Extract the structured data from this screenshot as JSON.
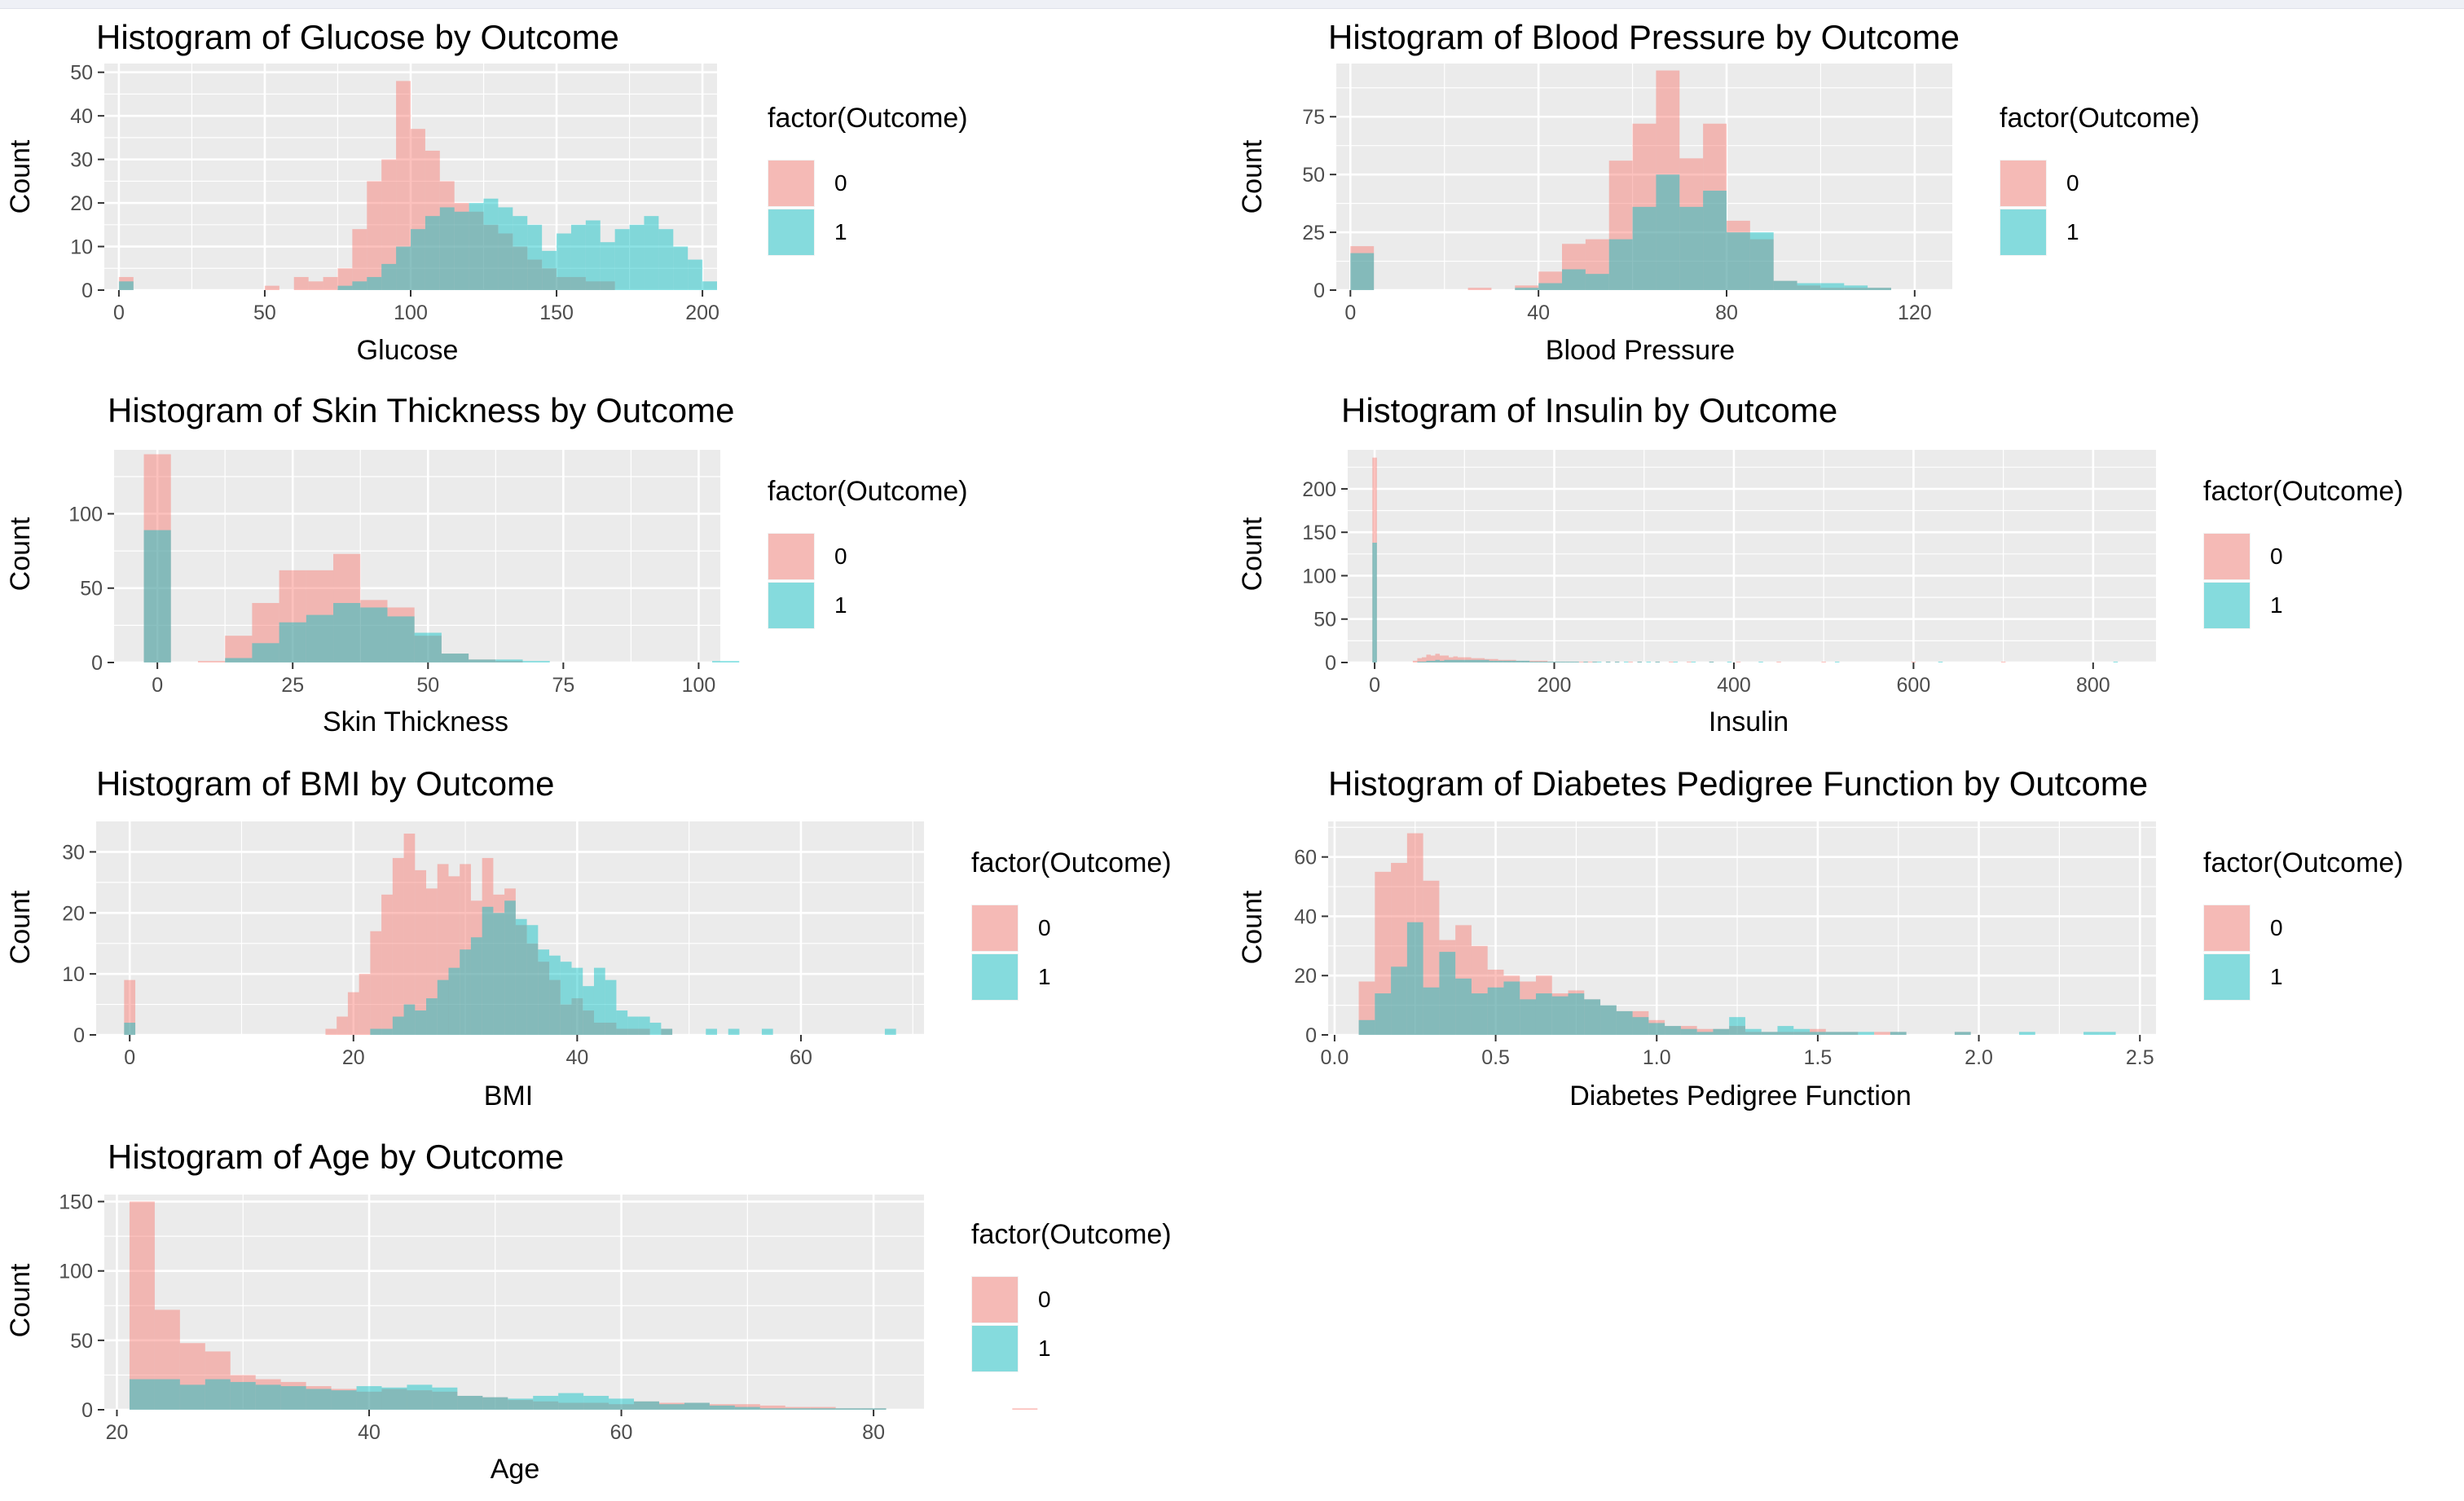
{
  "colors": {
    "outcome0": "#F8766D",
    "outcome1": "#00BFC4",
    "panel": "#EBEBEB",
    "grid": "#FFFFFF"
  },
  "chart_data": [
    {
      "type": "histogram",
      "title": "Histogram of Glucose by Outcome",
      "xlabel": "Glucose",
      "ylabel": "Count",
      "xlim": [
        -5,
        205
      ],
      "ylim": [
        0,
        52
      ],
      "xticks": [
        0,
        50,
        100,
        150,
        200
      ],
      "yticks": [
        0,
        10,
        20,
        30,
        40,
        50
      ],
      "bin_width": 5,
      "grid": true,
      "legend": {
        "title": "factor(Outcome)",
        "labels": [
          "0",
          "1"
        ],
        "placement": "right"
      },
      "bin_start": 0,
      "series": [
        {
          "name": "0",
          "values": [
            3,
            0,
            0,
            0,
            0,
            0,
            0,
            0,
            0,
            0,
            1,
            0,
            3,
            2,
            3,
            5,
            14,
            25,
            30,
            48,
            37,
            32,
            25,
            20,
            18,
            15,
            13,
            10,
            7,
            5,
            3,
            3,
            2,
            2,
            0,
            0,
            0,
            0,
            0,
            0,
            0
          ]
        },
        {
          "name": "1",
          "values": [
            2,
            0,
            0,
            0,
            0,
            0,
            0,
            0,
            0,
            0,
            0,
            0,
            0,
            0,
            0,
            1,
            2,
            3,
            6,
            10,
            14,
            17,
            19,
            18,
            20,
            21,
            19,
            17,
            15,
            9,
            13,
            15,
            16,
            11,
            14,
            15,
            17,
            14,
            10,
            7,
            2
          ]
        }
      ]
    },
    {
      "type": "histogram",
      "title": "Histogram of Blood Pressure by Outcome",
      "xlabel": "Blood Pressure",
      "ylabel": "Count",
      "xlim": [
        -3,
        128
      ],
      "ylim": [
        0,
        98
      ],
      "xticks": [
        0,
        40,
        80,
        120
      ],
      "yticks": [
        0,
        25,
        50,
        75
      ],
      "bin_width": 5,
      "grid": true,
      "legend": {
        "title": "factor(Outcome)",
        "labels": [
          "0",
          "1"
        ],
        "placement": "right"
      },
      "bin_start": 0,
      "series": [
        {
          "name": "0",
          "values": [
            19,
            0,
            0,
            0,
            0,
            1,
            0,
            2,
            8,
            20,
            22,
            56,
            72,
            95,
            57,
            72,
            30,
            22,
            4,
            2,
            1,
            1,
            1,
            0,
            0
          ]
        },
        {
          "name": "1",
          "values": [
            16,
            0,
            0,
            0,
            0,
            0,
            0,
            1,
            3,
            9,
            7,
            22,
            36,
            50,
            36,
            43,
            25,
            25,
            4,
            3,
            3,
            2,
            1,
            0,
            0
          ]
        }
      ]
    },
    {
      "type": "histogram",
      "title": "Histogram of Skin Thickness by Outcome",
      "xlabel": "Skin Thickness",
      "ylabel": "Count",
      "xlim": [
        -8,
        104
      ],
      "ylim": [
        0,
        143
      ],
      "xticks": [
        0,
        25,
        50,
        75,
        100
      ],
      "yticks": [
        0,
        50,
        100
      ],
      "bin_width": 5,
      "grid": true,
      "legend": {
        "title": "factor(Outcome)",
        "labels": [
          "0",
          "1"
        ],
        "placement": "right"
      },
      "bin_start": -2.5,
      "series": [
        {
          "name": "0",
          "values": [
            140,
            0,
            1,
            18,
            40,
            62,
            62,
            73,
            42,
            37,
            18,
            6,
            2,
            1,
            0,
            0,
            0,
            0,
            0,
            0,
            0,
            0
          ]
        },
        {
          "name": "1",
          "values": [
            89,
            0,
            0,
            3,
            13,
            27,
            32,
            40,
            37,
            31,
            20,
            6,
            2,
            2,
            1,
            0,
            0,
            0,
            0,
            0,
            0,
            1
          ]
        }
      ]
    },
    {
      "type": "histogram",
      "title": "Histogram of Insulin by Outcome",
      "xlabel": "Insulin",
      "ylabel": "Count",
      "xlim": [
        -30,
        870
      ],
      "ylim": [
        0,
        245
      ],
      "xticks": [
        0,
        200,
        400,
        600,
        800
      ],
      "yticks": [
        0,
        50,
        100,
        150,
        200
      ],
      "bin_width": 5,
      "grid": true,
      "legend": {
        "title": "factor(Outcome)",
        "labels": [
          "0",
          "1"
        ],
        "placement": "right"
      },
      "bin_start": -2.5,
      "series": [
        {
          "name": "0",
          "values": [
            236,
            0,
            0,
            0,
            0,
            0,
            0,
            0,
            0,
            2,
            5,
            6,
            9,
            8,
            10,
            8,
            8,
            6,
            7,
            6,
            6,
            6,
            5,
            5,
            5,
            4,
            4,
            4,
            3,
            3,
            3,
            3,
            2,
            2,
            2,
            2,
            2,
            2,
            2,
            1,
            1,
            1,
            1,
            1,
            1,
            1,
            1,
            1,
            1,
            1,
            0,
            0,
            1,
            0,
            1,
            0,
            0,
            1,
            0,
            1,
            0,
            0,
            0,
            1,
            0,
            0,
            1,
            0,
            0,
            0,
            1,
            0,
            0,
            0,
            0,
            1,
            0,
            0,
            0,
            0,
            0,
            1,
            0,
            0,
            0,
            0,
            0,
            0,
            0,
            0,
            1,
            0,
            0,
            0,
            0,
            0,
            0,
            0,
            0,
            0,
            1,
            0,
            0,
            0,
            0,
            0,
            0,
            0,
            0,
            0,
            0,
            0,
            0,
            0,
            0,
            0,
            0,
            0,
            0,
            0,
            1,
            0,
            0,
            0,
            0,
            0,
            0,
            0,
            0,
            0,
            0,
            0,
            0,
            0,
            0,
            0,
            0,
            0,
            0,
            0,
            1,
            0,
            0,
            0,
            0,
            0,
            0,
            0,
            0,
            0,
            0,
            0,
            0,
            0,
            0,
            0,
            0,
            0,
            0,
            0,
            0,
            0,
            0,
            0,
            0,
            0,
            0,
            0,
            0,
            0
          ]
        },
        {
          "name": "1",
          "values": [
            138,
            0,
            0,
            0,
            0,
            0,
            0,
            0,
            0,
            0,
            1,
            1,
            2,
            2,
            3,
            2,
            3,
            3,
            3,
            3,
            3,
            3,
            3,
            3,
            3,
            3,
            2,
            2,
            2,
            2,
            2,
            2,
            2,
            2,
            2,
            1,
            1,
            1,
            1,
            1,
            1,
            1,
            1,
            1,
            1,
            1,
            0,
            1,
            0,
            1,
            1,
            0,
            1,
            0,
            1,
            0,
            1,
            0,
            0,
            1,
            0,
            1,
            0,
            1,
            0,
            0,
            0,
            1,
            0,
            0,
            0,
            1,
            0,
            0,
            0,
            1,
            0,
            0,
            0,
            1,
            0,
            0,
            0,
            0,
            0,
            0,
            1,
            0,
            0,
            0,
            0,
            0,
            0,
            0,
            0,
            0,
            0,
            0,
            0,
            0,
            0,
            0,
            0,
            1,
            0,
            0,
            0,
            0,
            0,
            0,
            0,
            0,
            0,
            0,
            0,
            0,
            0,
            0,
            0,
            0,
            0,
            0,
            0,
            0,
            0,
            0,
            1,
            0,
            0,
            0,
            0,
            0,
            0,
            0,
            0,
            0,
            0,
            0,
            0,
            0,
            0,
            0,
            0,
            0,
            0,
            0,
            0,
            0,
            0,
            0,
            0,
            0,
            0,
            0,
            0,
            0,
            0,
            0,
            0,
            0,
            0,
            0,
            0,
            0,
            0,
            1,
            0,
            0,
            0,
            0
          ]
        }
      ]
    },
    {
      "type": "histogram",
      "title": "Histogram of BMI by Outcome",
      "xlabel": "BMI",
      "ylabel": "Count",
      "xlim": [
        -3,
        71
      ],
      "ylim": [
        0,
        35
      ],
      "xticks": [
        0,
        20,
        40,
        60
      ],
      "yticks": [
        0,
        10,
        20,
        30
      ],
      "bin_width": 1,
      "grid": true,
      "legend": {
        "title": "factor(Outcome)",
        "labels": [
          "0",
          "1"
        ],
        "placement": "right"
      },
      "bin_start": -0.5,
      "series": [
        {
          "name": "0",
          "values": [
            9,
            0,
            0,
            0,
            0,
            0,
            0,
            0,
            0,
            0,
            0,
            0,
            0,
            0,
            0,
            0,
            0,
            0,
            1,
            3,
            7,
            10,
            17,
            23,
            29,
            33,
            27,
            24,
            28,
            26,
            28,
            22,
            29,
            23,
            24,
            18,
            15,
            12,
            9,
            5,
            6,
            4,
            2,
            2,
            1,
            1,
            1,
            0,
            1,
            0,
            0,
            0,
            0,
            0,
            0,
            0,
            0,
            0,
            0,
            0,
            0,
            0,
            0,
            0,
            0,
            0,
            0,
            0,
            0
          ]
        },
        {
          "name": "1",
          "values": [
            2,
            0,
            0,
            0,
            0,
            0,
            0,
            0,
            0,
            0,
            0,
            0,
            0,
            0,
            0,
            0,
            0,
            0,
            0,
            0,
            0,
            0,
            1,
            1,
            3,
            5,
            4,
            6,
            9,
            11,
            14,
            16,
            21,
            20,
            22,
            19,
            18,
            14,
            13,
            12,
            11,
            8,
            11,
            9,
            4,
            3,
            3,
            2,
            1,
            0,
            0,
            0,
            1,
            0,
            1,
            0,
            0,
            1,
            0,
            0,
            0,
            0,
            0,
            0,
            0,
            0,
            0,
            0,
            1
          ]
        }
      ]
    },
    {
      "type": "histogram",
      "title": "Histogram of Diabetes Pedigree Function by Outcome",
      "xlabel": "Diabetes Pedigree Function",
      "ylabel": "Count",
      "xlim": [
        -0.02,
        2.55
      ],
      "ylim": [
        0,
        72
      ],
      "xticks": [
        0.0,
        0.5,
        1.0,
        1.5,
        2.0,
        2.5
      ],
      "yticks": [
        0,
        20,
        40,
        60
      ],
      "bin_width": 0.05,
      "grid": true,
      "legend": {
        "title": "factor(Outcome)",
        "labels": [
          "0",
          "1"
        ],
        "placement": "right"
      },
      "bin_start": 0.075,
      "series": [
        {
          "name": "0",
          "values": [
            18,
            55,
            58,
            68,
            52,
            32,
            37,
            30,
            22,
            20,
            18,
            20,
            14,
            15,
            12,
            10,
            8,
            8,
            5,
            3,
            3,
            2,
            2,
            3,
            1,
            1,
            1,
            1,
            2,
            1,
            1,
            0,
            1,
            1,
            0,
            0,
            0,
            1,
            0,
            0,
            0,
            0,
            0,
            0,
            0,
            0,
            0,
            0
          ]
        },
        {
          "name": "1",
          "values": [
            5,
            14,
            23,
            38,
            16,
            28,
            19,
            14,
            16,
            18,
            12,
            14,
            13,
            14,
            12,
            10,
            8,
            6,
            4,
            3,
            2,
            1,
            2,
            6,
            2,
            1,
            3,
            2,
            1,
            1,
            1,
            1,
            0,
            1,
            0,
            0,
            0,
            1,
            0,
            0,
            0,
            1,
            0,
            0,
            0,
            1,
            1,
            0
          ]
        }
      ]
    },
    {
      "type": "histogram",
      "title": "Histogram of Age by Outcome",
      "xlabel": "Age",
      "ylabel": "Count",
      "xlim": [
        19,
        84
      ],
      "ylim": [
        0,
        155
      ],
      "xticks": [
        20,
        40,
        60,
        80
      ],
      "yticks": [
        0,
        50,
        100,
        150
      ],
      "bin_width": 2,
      "grid": true,
      "legend": {
        "title": "factor(Outcome)",
        "labels": [
          "0",
          "1"
        ],
        "placement": "right"
      },
      "bin_start": 21,
      "series": [
        {
          "name": "0",
          "values": [
            150,
            72,
            48,
            42,
            25,
            22,
            20,
            17,
            15,
            13,
            15,
            14,
            13,
            10,
            9,
            7,
            6,
            5,
            5,
            4,
            6,
            5,
            5,
            4,
            4,
            3,
            2,
            2,
            1,
            1,
            0,
            0,
            0,
            0,
            0,
            1
          ]
        },
        {
          "name": "1",
          "values": [
            22,
            22,
            18,
            22,
            20,
            18,
            17,
            15,
            14,
            17,
            16,
            18,
            16,
            10,
            9,
            8,
            10,
            12,
            10,
            8,
            6,
            4,
            5,
            3,
            2,
            1,
            1,
            1,
            1,
            1,
            0,
            0,
            0,
            0,
            0,
            0
          ]
        }
      ]
    }
  ]
}
